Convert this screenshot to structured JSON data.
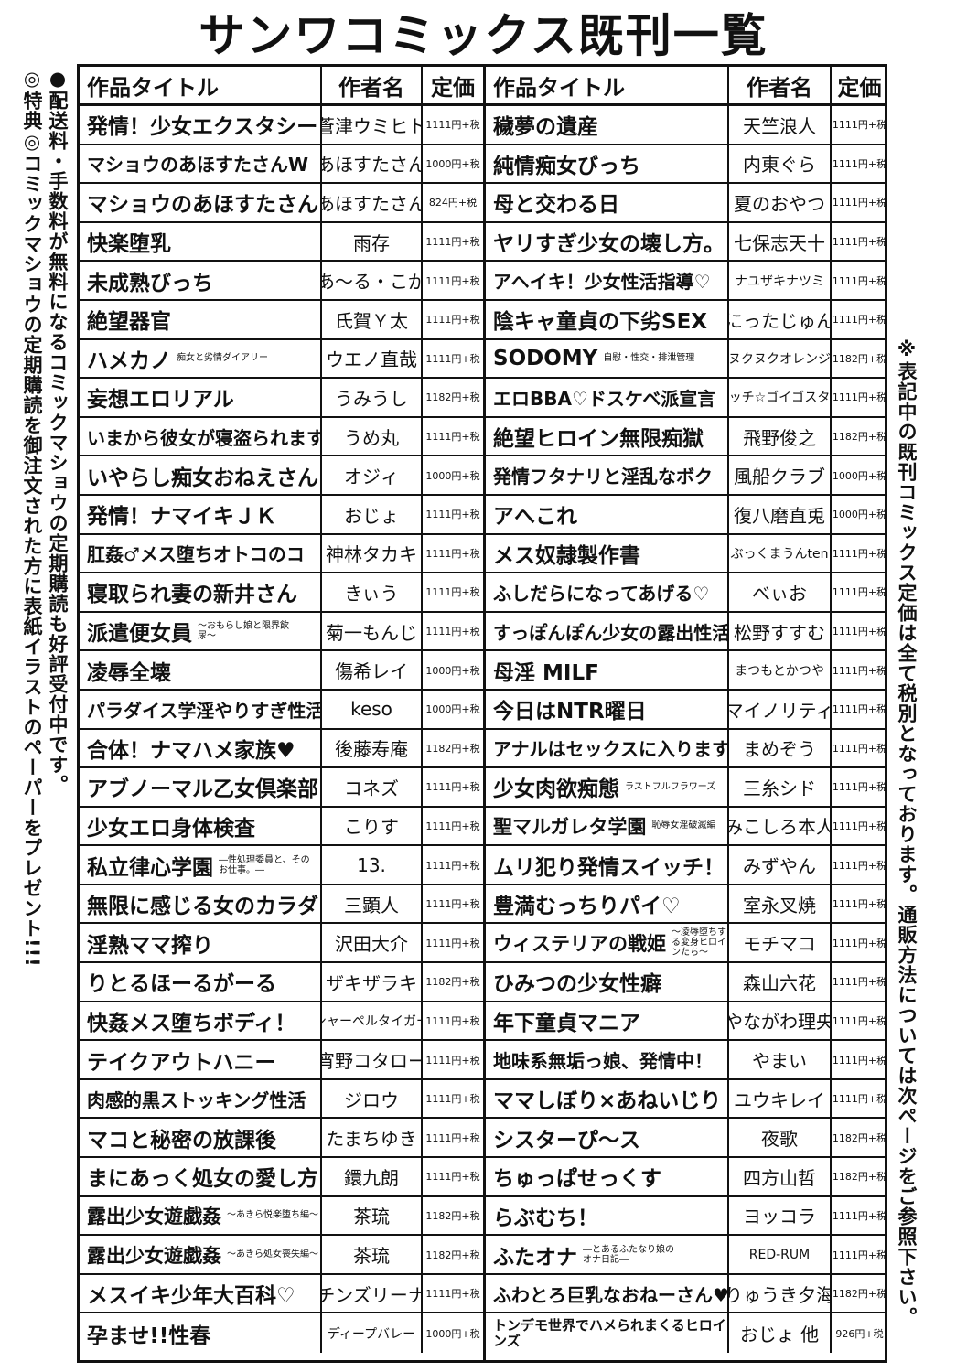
{
  "heading": "サンワコミックス既刊一覧",
  "side_notes": {
    "shipping": "●配送料・手数料が無料になるコミックマショウの定期購読も好評受付中です。",
    "bonus": "◎特典◎コミックマショウの定期購読を御注文された方に表紙イラストのペーパーをプレゼント!!!",
    "note": "※表記中の既刊コミックス定価は全て税別となっております。通販方法については次ページをご参照下さい。"
  },
  "headers": {
    "title": "作品タイトル",
    "author": "作者名",
    "price": "定価"
  },
  "left": [
    {
      "title": "発情！少女エクスタシー",
      "sub": "",
      "author": "蒼津ウミヒト",
      "price": "1111円+税"
    },
    {
      "title": "マショウのあほすたさんW",
      "sub": "",
      "author": "あほすたさん",
      "price": "1000円+税"
    },
    {
      "title": "マショウのあほすたさん",
      "sub": "",
      "author": "あほすたさん",
      "price": "824円+税"
    },
    {
      "title": "快楽堕乳",
      "sub": "",
      "author": "雨存",
      "price": "1111円+税"
    },
    {
      "title": "未成熟びっち",
      "sub": "",
      "author": "あ～る・こが",
      "price": "1111円+税"
    },
    {
      "title": "絶望器官",
      "sub": "",
      "author": "氏賀Ｙ太",
      "price": "1111円+税"
    },
    {
      "title": "ハメカノ",
      "sub": "痴女と劣情ダイアリー",
      "author": "ウエノ直哉",
      "price": "1111円+税"
    },
    {
      "title": "妄想エロリアル",
      "sub": "",
      "author": "うみうし",
      "price": "1182円+税"
    },
    {
      "title": "いまから彼女が寝盗られます",
      "sub": "",
      "author": "うめ丸",
      "price": "1111円+税"
    },
    {
      "title": "いやらし痴女おねえさん",
      "sub": "",
      "author": "オジィ",
      "price": "1000円+税"
    },
    {
      "title": "発情！ナマイキＪＫ",
      "sub": "",
      "author": "おじょ",
      "price": "1111円+税"
    },
    {
      "title": "肛姦♂メス堕ちオトコのコ",
      "sub": "",
      "author": "神林タカキ",
      "price": "1111円+税"
    },
    {
      "title": "寝取られ妻の新井さん",
      "sub": "",
      "author": "きぃう",
      "price": "1111円+税"
    },
    {
      "title": "派遣便女員",
      "sub": "～おもらし娘と限界飲尿～",
      "author": "菊一もんじ",
      "price": "1111円+税"
    },
    {
      "title": "凌辱全壊",
      "sub": "",
      "author": "傷希レイ",
      "price": "1000円+税"
    },
    {
      "title": "パラダイス学淫やりすぎ性活指導",
      "sub": "",
      "author": "keso",
      "price": "1000円+税"
    },
    {
      "title": "合体！ナマハメ家族♥",
      "sub": "",
      "author": "後藤寿庵",
      "price": "1182円+税"
    },
    {
      "title": "アブノーマル乙女倶楽部",
      "sub": "",
      "author": "コネズ",
      "price": "1111円+税"
    },
    {
      "title": "少女エロ身体検査",
      "sub": "",
      "author": "こりす",
      "price": "1111円+税"
    },
    {
      "title": "私立律心学園",
      "sub": "―性処理委員と、そのお仕事。―",
      "author": "13.",
      "price": "1111円+税"
    },
    {
      "title": "無限に感じる女のカラダ",
      "sub": "",
      "author": "三顕人",
      "price": "1111円+税"
    },
    {
      "title": "淫熟ママ搾り",
      "sub": "",
      "author": "沢田大介",
      "price": "1111円+税"
    },
    {
      "title": "りとるほーるがーる",
      "sub": "",
      "author": "ザキザラキ",
      "price": "1182円+税"
    },
    {
      "title": "快姦メス堕ちボディ！",
      "sub": "",
      "author": "シャーペルタイガー",
      "price": "1111円+税"
    },
    {
      "title": "テイクアウトハニー",
      "sub": "",
      "author": "宵野コタロー",
      "price": "1111円+税"
    },
    {
      "title": "肉感的黒ストッキング性活",
      "sub": "",
      "author": "ジロウ",
      "price": "1111円+税"
    },
    {
      "title": "マコと秘密の放課後",
      "sub": "",
      "author": "たまちゆき",
      "price": "1111円+税"
    },
    {
      "title": "まにあっく処女の愛し方",
      "sub": "",
      "author": "鐶九朗",
      "price": "1111円+税"
    },
    {
      "title": "露出少女遊戯姦",
      "sub": "～あきら悦楽堕ち編～",
      "author": "茶琉",
      "price": "1182円+税"
    },
    {
      "title": "露出少女遊戯姦",
      "sub": "～あきら処女喪失編～",
      "author": "茶琉",
      "price": "1182円+税"
    },
    {
      "title": "メスイキ少年大百科♡",
      "sub": "",
      "author": "チンズリーナ",
      "price": "1111円+税"
    },
    {
      "title": "孕ませ!!性春",
      "sub": "",
      "author": "ディープバレー",
      "price": "1000円+税"
    }
  ],
  "right": [
    {
      "title": "穢夢の遺産",
      "sub": "",
      "author": "天竺浪人",
      "price": "1111円+税"
    },
    {
      "title": "純情痴女びっち",
      "sub": "",
      "author": "内東ぐら",
      "price": "1111円+税"
    },
    {
      "title": "母と交わる日",
      "sub": "",
      "author": "夏のおやつ",
      "price": "1111円+税"
    },
    {
      "title": "ヤリすぎ少女の壊し方。",
      "sub": "",
      "author": "七保志天十",
      "price": "1111円+税"
    },
    {
      "title": "アヘイキ！少女性活指導♡",
      "sub": "",
      "author": "ナユザキナツミ",
      "price": "1111円+税"
    },
    {
      "title": "陰キャ童貞の下劣SEX",
      "sub": "",
      "author": "にったじゅん",
      "price": "1111円+税"
    },
    {
      "title": "SODOMY",
      "sub": "自慰・性交・排泄管理",
      "author": "ヌクヌクオレンジ",
      "price": "1182円+税"
    },
    {
      "title": "エロBBA♡ドスケベ派宣言",
      "sub": "",
      "author": "ビッチ☆ゴイゴスター",
      "price": "1111円+税"
    },
    {
      "title": "絶望ヒロイン無限痴獄",
      "sub": "",
      "author": "飛野俊之",
      "price": "1182円+税"
    },
    {
      "title": "発情フタナリと淫乱なボク",
      "sub": "",
      "author": "風船クラブ",
      "price": "1000円+税"
    },
    {
      "title": "アへこれ",
      "sub": "",
      "author": "復八磨直兎",
      "price": "1000円+税"
    },
    {
      "title": "メス奴隷製作書",
      "sub": "",
      "author": "ぶっくまうんten",
      "price": "1111円+税"
    },
    {
      "title": "ふしだらになってあげる♡",
      "sub": "",
      "author": "べぃお",
      "price": "1111円+税"
    },
    {
      "title": "すっぽんぽん少女の露出性活！",
      "sub": "",
      "author": "松野すすむ",
      "price": "1111円+税"
    },
    {
      "title": "母淫 MILF",
      "sub": "",
      "author": "まつもとかつや",
      "price": "1111円+税"
    },
    {
      "title": "今日はNTR曜日",
      "sub": "",
      "author": "マイノリティ",
      "price": "1111円+税"
    },
    {
      "title": "アナルはセックスに入りますか？",
      "sub": "",
      "author": "まめぞう",
      "price": "1111円+税"
    },
    {
      "title": "少女肉欲痴態",
      "sub": "ラストフルフラワーズ",
      "author": "三糸シド",
      "price": "1111円+税"
    },
    {
      "title": "聖マルガレタ学園",
      "sub": "恥辱女淫破滅編",
      "author": "みこしろ本人",
      "price": "1111円+税"
    },
    {
      "title": "ムリ犯り発情スイッチ！",
      "sub": "",
      "author": "みずやん",
      "price": "1111円+税"
    },
    {
      "title": "豊満むっちりパイ♡",
      "sub": "",
      "author": "室永叉焼",
      "price": "1111円+税"
    },
    {
      "title": "ウィステリアの戦姫",
      "sub": "～凌辱堕ちする変身ヒロインたち～",
      "author": "モチマコ",
      "price": "1111円+税"
    },
    {
      "title": "ひみつの少女性癖",
      "sub": "",
      "author": "森山六花",
      "price": "1111円+税"
    },
    {
      "title": "年下童貞マニア",
      "sub": "",
      "author": "やながわ理央",
      "price": "1111円+税"
    },
    {
      "title": "地味系無垢っ娘、発情中！",
      "sub": "",
      "author": "やまい",
      "price": "1111円+税"
    },
    {
      "title": "ママしぼり×あねいじり",
      "sub": "",
      "author": "ユウキレイ",
      "price": "1111円+税"
    },
    {
      "title": "シスターぴ～ス",
      "sub": "",
      "author": "夜歌",
      "price": "1182円+税"
    },
    {
      "title": "ちゅっぱせっくす",
      "sub": "",
      "author": "四方山哲",
      "price": "1182円+税"
    },
    {
      "title": "らぶむち！",
      "sub": "",
      "author": "ヨッコラ",
      "price": "1111円+税"
    },
    {
      "title": "ふたオナ",
      "sub": "―とあるふたなり娘のオナ日記―",
      "author": "RED-RUM",
      "price": "1111円+税"
    },
    {
      "title": "ふわとろ巨乳なおねーさん♥",
      "sub": "",
      "author": "りゅうき夕海",
      "price": "1182円+税"
    },
    {
      "title": "トンデモ世界でハメられまくるヒロインズ",
      "sub": "",
      "author": "おじょ 他",
      "price": "926円+税"
    }
  ]
}
